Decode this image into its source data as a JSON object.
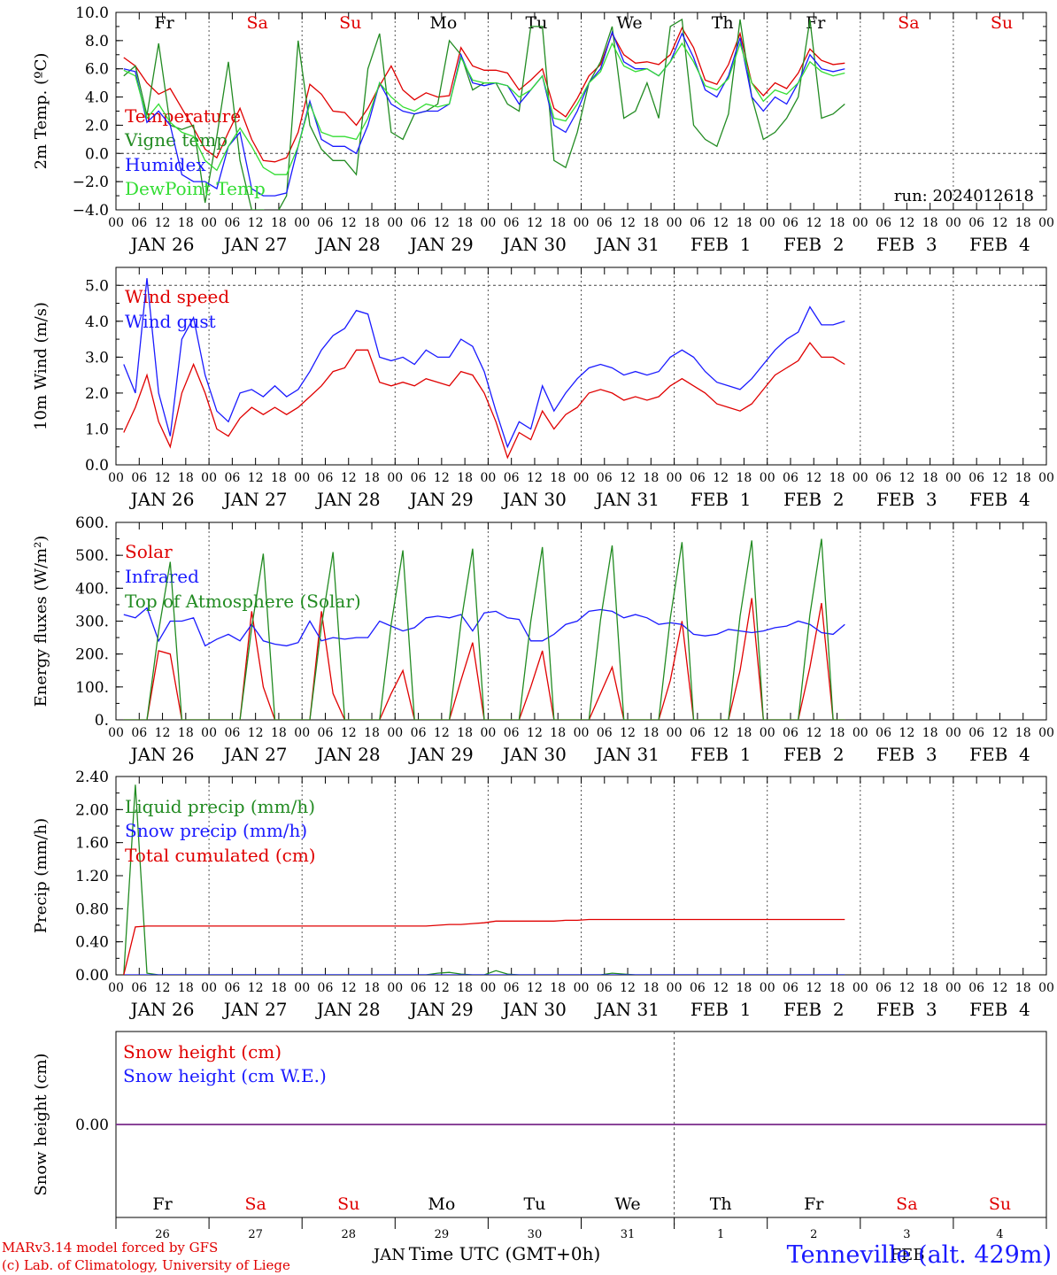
{
  "run_label": "run: 2024012618",
  "day_names": [
    "Fr",
    "Sa",
    "Su",
    "Mo",
    "Tu",
    "We",
    "Th",
    "Fr",
    "Sa",
    "Su"
  ],
  "weekend_flags": [
    false,
    true,
    true,
    false,
    false,
    false,
    false,
    false,
    true,
    true
  ],
  "date_labels": [
    "JAN 26",
    "JAN 27",
    "JAN 28",
    "JAN 29",
    "JAN 30",
    "JAN 31",
    "FEB  1",
    "FEB  2",
    "FEB  3",
    "FEB  4"
  ],
  "hour_ticks": [
    "00",
    "06",
    "12",
    "18"
  ],
  "bottom_day_numbers": [
    "26",
    "27",
    "28",
    "29",
    "30",
    "31",
    "1",
    "2",
    "3",
    "4"
  ],
  "bottom_month_labels": [
    "JAN",
    "FEB"
  ],
  "xlabel": "Time UTC (GMT+0h)",
  "footer": {
    "credit_line1": "MARv3.14 model forced by GFS",
    "credit_line2": "(c) Lab. of Climatology, University of Liege",
    "station": "Tenneville (alt. 429m)"
  },
  "colors": {
    "red": "#e00000",
    "green": "#228b22",
    "blue": "#1a1aff",
    "lightgreen": "#33dd33",
    "purple": "#7a2a8a",
    "weekend": "#e00000"
  },
  "chart_data": [
    {
      "type": "line",
      "ylabel": "2m Temp. (ºC)",
      "ylim": [
        -4,
        10
      ],
      "yticks": [
        "10.0",
        "8.0",
        "6.0",
        "4.0",
        "2.0",
        "0.0",
        "−2.0",
        "−4.0"
      ],
      "x_unit": "hours since JAN 26 00 UTC (3-hourly)",
      "series": [
        {
          "name": "Temperature",
          "color": "red",
          "values": [
            6.8,
            6.2,
            5.0,
            4.2,
            4.6,
            3.2,
            1.8,
            0.3,
            -0.3,
            1.5,
            3.2,
            1.0,
            -0.5,
            -0.6,
            -0.3,
            1.5,
            4.9,
            4.2,
            3.0,
            2.9,
            2.0,
            3.2,
            4.8,
            6.2,
            4.5,
            3.8,
            4.3,
            4.0,
            4.1,
            7.5,
            6.2,
            5.9,
            5.9,
            5.7,
            4.5,
            5.2,
            6.0,
            3.2,
            2.6,
            3.9,
            5.5,
            6.3,
            8.5,
            7.0,
            6.4,
            6.5,
            6.3,
            7.0,
            8.9,
            7.5,
            5.2,
            4.9,
            6.3,
            8.5,
            5.0,
            4.1,
            5.0,
            4.6,
            5.7,
            7.4,
            6.6,
            6.3,
            6.4
          ]
        },
        {
          "name": "Vigne temp",
          "color": "green",
          "values": [
            5.5,
            6.2,
            2.7,
            7.8,
            2.0,
            1.7,
            2.0,
            -3.5,
            1.2,
            6.5,
            -0.5,
            -4.0,
            -4.0,
            -4.5,
            -3.0,
            8.0,
            2.0,
            0.3,
            -0.5,
            -0.5,
            -1.5,
            6.0,
            8.5,
            1.5,
            1.0,
            2.8,
            3.0,
            3.5,
            8.0,
            7.0,
            4.5,
            5.0,
            5.0,
            3.5,
            3.0,
            9.0,
            9.0,
            -0.5,
            -1.0,
            1.5,
            5.0,
            6.5,
            9.0,
            2.5,
            3.0,
            5.0,
            2.5,
            9.0,
            9.5,
            2.0,
            1.0,
            0.5,
            2.8,
            9.5,
            4.0,
            1.0,
            1.5,
            2.5,
            4.0,
            9.5,
            2.5,
            2.8,
            3.5
          ]
        },
        {
          "name": "Humidex",
          "color": "blue",
          "values": [
            6.0,
            5.8,
            2.2,
            3.0,
            2.0,
            -1.5,
            -2.0,
            -2.0,
            -2.5,
            0.5,
            1.5,
            -2.5,
            -3.0,
            -3.0,
            -2.8,
            0.5,
            3.7,
            1.0,
            0.5,
            0.5,
            0.0,
            2.0,
            5.0,
            3.5,
            3.0,
            2.8,
            3.0,
            3.0,
            3.5,
            7.0,
            5.0,
            4.8,
            5.0,
            4.8,
            3.5,
            4.5,
            5.5,
            2.0,
            1.5,
            3.0,
            5.0,
            6.0,
            8.6,
            6.5,
            6.0,
            6.0,
            5.5,
            6.5,
            8.5,
            6.8,
            4.5,
            4.0,
            5.5,
            8.2,
            4.0,
            3.0,
            4.0,
            3.5,
            5.0,
            7.0,
            6.0,
            5.8,
            6.0
          ]
        },
        {
          "name": "DewPoint Temp",
          "color": "lightgreen",
          "values": [
            5.9,
            5.5,
            2.5,
            3.5,
            2.2,
            1.5,
            1.2,
            -0.5,
            -1.2,
            0.5,
            1.8,
            0.5,
            -1.0,
            -1.5,
            -1.5,
            0.5,
            3.5,
            1.5,
            1.2,
            1.2,
            1.0,
            2.5,
            5.0,
            4.0,
            3.3,
            3.0,
            3.5,
            3.3,
            3.5,
            6.8,
            5.2,
            5.0,
            5.0,
            4.8,
            4.0,
            4.5,
            5.5,
            2.5,
            2.3,
            3.5,
            5.0,
            5.8,
            7.8,
            6.2,
            5.8,
            6.0,
            5.5,
            6.5,
            7.8,
            6.5,
            4.8,
            4.5,
            5.3,
            7.8,
            5.0,
            3.7,
            4.5,
            4.2,
            5.0,
            6.5,
            5.8,
            5.5,
            5.7
          ]
        }
      ]
    },
    {
      "type": "line",
      "ylabel": "10m Wind (m/s)",
      "ylim": [
        0,
        5.5
      ],
      "yticks": [
        "5.0",
        "4.0",
        "3.0",
        "2.0",
        "1.0",
        "0.0"
      ],
      "x_unit": "hours since JAN 26 00 UTC (3-hourly)",
      "series": [
        {
          "name": "Wind speed",
          "color": "red",
          "values": [
            0.9,
            1.6,
            2.5,
            1.2,
            0.5,
            2.0,
            2.8,
            2.0,
            1.0,
            0.8,
            1.3,
            1.6,
            1.4,
            1.6,
            1.4,
            1.6,
            1.9,
            2.2,
            2.6,
            2.7,
            3.2,
            3.2,
            2.3,
            2.2,
            2.3,
            2.2,
            2.4,
            2.3,
            2.2,
            2.6,
            2.5,
            2.0,
            1.2,
            0.2,
            0.9,
            0.7,
            1.5,
            1.0,
            1.4,
            1.6,
            2.0,
            2.1,
            2.0,
            1.8,
            1.9,
            1.8,
            1.9,
            2.2,
            2.4,
            2.2,
            2.0,
            1.7,
            1.6,
            1.5,
            1.7,
            2.1,
            2.5,
            2.7,
            2.9,
            3.4,
            3.0,
            3.0,
            2.8
          ]
        },
        {
          "name": "Wind gust",
          "color": "blue",
          "values": [
            2.8,
            2.0,
            5.2,
            2.0,
            0.8,
            3.5,
            4.1,
            2.5,
            1.5,
            1.2,
            2.0,
            2.1,
            1.9,
            2.2,
            1.9,
            2.1,
            2.6,
            3.2,
            3.6,
            3.8,
            4.3,
            4.2,
            3.0,
            2.9,
            3.0,
            2.8,
            3.2,
            3.0,
            3.0,
            3.5,
            3.3,
            2.6,
            1.5,
            0.5,
            1.2,
            1.0,
            2.2,
            1.5,
            2.0,
            2.4,
            2.7,
            2.8,
            2.7,
            2.5,
            2.6,
            2.5,
            2.6,
            3.0,
            3.2,
            3.0,
            2.6,
            2.3,
            2.2,
            2.1,
            2.4,
            2.8,
            3.2,
            3.5,
            3.7,
            4.4,
            3.9,
            3.9,
            4.0
          ]
        }
      ]
    },
    {
      "type": "line",
      "ylabel": "Energy fluxes (W/m²)",
      "ylim": [
        0,
        600
      ],
      "yticks": [
        "600.",
        "500.",
        "400.",
        "300.",
        "200.",
        "100.",
        "0."
      ],
      "x_unit": "hours since JAN 26 00 UTC (3-hourly)",
      "series": [
        {
          "name": "Solar",
          "color": "red",
          "values": [
            0,
            0,
            0,
            210,
            200,
            0,
            0,
            0,
            0,
            0,
            0,
            330,
            100,
            0,
            0,
            0,
            0,
            330,
            80,
            0,
            0,
            0,
            0,
            80,
            150,
            0,
            0,
            0,
            0,
            120,
            235,
            0,
            0,
            0,
            0,
            100,
            210,
            0,
            0,
            0,
            0,
            80,
            160,
            0,
            0,
            0,
            0,
            120,
            300,
            0,
            0,
            0,
            0,
            150,
            370,
            0,
            0,
            0,
            0,
            160,
            355,
            0,
            0
          ]
        },
        {
          "name": "Infrared",
          "color": "blue",
          "values": [
            320,
            310,
            340,
            240,
            300,
            300,
            310,
            225,
            245,
            260,
            240,
            290,
            240,
            230,
            225,
            235,
            300,
            240,
            250,
            245,
            250,
            250,
            300,
            285,
            270,
            280,
            310,
            315,
            310,
            320,
            270,
            325,
            330,
            310,
            305,
            240,
            240,
            260,
            290,
            300,
            330,
            335,
            330,
            310,
            320,
            310,
            290,
            295,
            290,
            260,
            255,
            260,
            275,
            270,
            265,
            270,
            280,
            285,
            300,
            290,
            265,
            260,
            290
          ]
        },
        {
          "name": "Top of Atmosphere (Solar)",
          "color": "green",
          "values": [
            0,
            0,
            0,
            270,
            480,
            0,
            0,
            0,
            0,
            0,
            0,
            280,
            505,
            0,
            0,
            0,
            0,
            285,
            510,
            0,
            0,
            0,
            0,
            290,
            515,
            0,
            0,
            0,
            0,
            295,
            520,
            0,
            0,
            0,
            0,
            300,
            525,
            0,
            0,
            0,
            0,
            305,
            530,
            0,
            0,
            0,
            0,
            310,
            540,
            0,
            0,
            0,
            0,
            315,
            545,
            0,
            0,
            0,
            0,
            320,
            550,
            0,
            0
          ]
        }
      ]
    },
    {
      "type": "line",
      "ylabel": "Precip (mm/h)",
      "ylim": [
        0,
        2.4
      ],
      "yticks": [
        "2.40",
        "2.00",
        "1.60",
        "1.20",
        "0.80",
        "0.40",
        "0.00"
      ],
      "x_unit": "hours since JAN 26 00 UTC (3-hourly)",
      "series": [
        {
          "name": "Liquid precip (mm/h)",
          "color": "green",
          "values": [
            0,
            2.3,
            0.02,
            0,
            0,
            0,
            0,
            0,
            0,
            0,
            0,
            0,
            0,
            0,
            0,
            0,
            0,
            0,
            0,
            0,
            0,
            0,
            0,
            0,
            0,
            0,
            0,
            0.02,
            0.03,
            0.01,
            0,
            0,
            0.05,
            0.01,
            0,
            0,
            0,
            0,
            0,
            0,
            0,
            0,
            0.02,
            0.01,
            0,
            0,
            0,
            0,
            0,
            0,
            0,
            0,
            0,
            0,
            0,
            0,
            0,
            0,
            0,
            0,
            0,
            0,
            0
          ]
        },
        {
          "name": "Snow precip (mm/h)",
          "color": "blue",
          "values": [
            0,
            0,
            0,
            0,
            0,
            0,
            0,
            0,
            0,
            0,
            0,
            0,
            0,
            0,
            0,
            0,
            0,
            0,
            0,
            0,
            0,
            0,
            0,
            0,
            0,
            0,
            0,
            0,
            0,
            0,
            0,
            0,
            0,
            0,
            0,
            0,
            0,
            0,
            0,
            0,
            0,
            0,
            0,
            0,
            0,
            0,
            0,
            0,
            0,
            0,
            0,
            0,
            0,
            0,
            0,
            0,
            0,
            0,
            0,
            0,
            0,
            0,
            0
          ]
        },
        {
          "name": "Total cumulated (cm)",
          "color": "red",
          "values": [
            0,
            0.58,
            0.59,
            0.59,
            0.59,
            0.59,
            0.59,
            0.59,
            0.59,
            0.59,
            0.59,
            0.59,
            0.59,
            0.59,
            0.59,
            0.59,
            0.59,
            0.59,
            0.59,
            0.59,
            0.59,
            0.59,
            0.59,
            0.59,
            0.59,
            0.59,
            0.59,
            0.6,
            0.61,
            0.61,
            0.62,
            0.63,
            0.65,
            0.65,
            0.65,
            0.65,
            0.65,
            0.65,
            0.66,
            0.66,
            0.67,
            0.67,
            0.67,
            0.67,
            0.67,
            0.67,
            0.67,
            0.67,
            0.67,
            0.67,
            0.67,
            0.67,
            0.67,
            0.67,
            0.67,
            0.67,
            0.67,
            0.67,
            0.67,
            0.67,
            0.67,
            0.67,
            0.67
          ]
        }
      ]
    },
    {
      "type": "line",
      "ylabel": "Snow height (cm)",
      "ylim": [
        -1,
        1
      ],
      "yticks": [
        "0.00"
      ],
      "series": [
        {
          "name": "Snow height (cm)",
          "color": "red",
          "values": [
            0,
            0
          ]
        },
        {
          "name": "Snow height (cm W.E.)",
          "color": "blue",
          "values": [
            0,
            0
          ]
        }
      ]
    }
  ]
}
